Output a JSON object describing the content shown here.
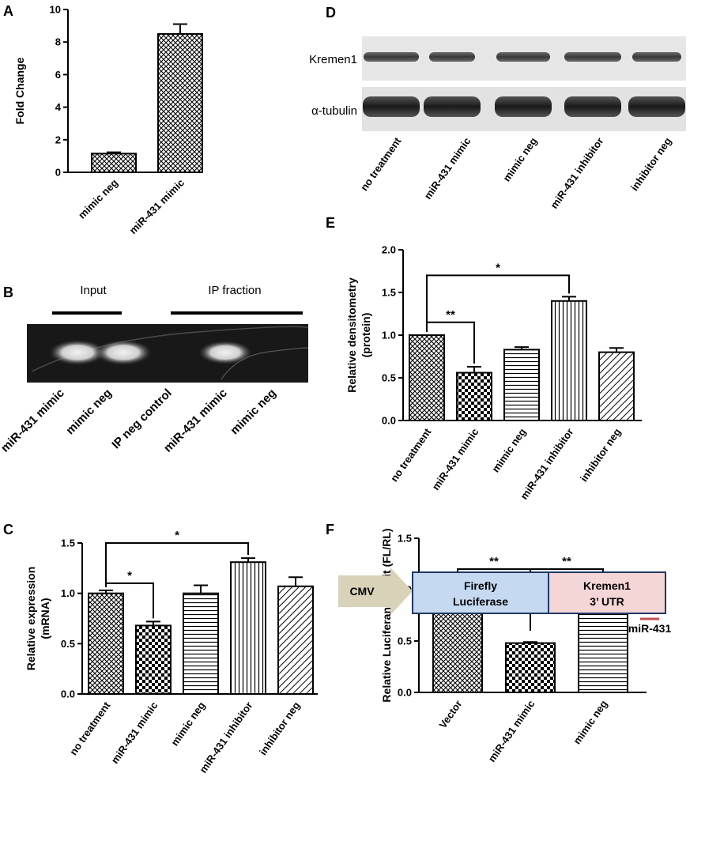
{
  "panels": {
    "A": {
      "letter": "A"
    },
    "B": {
      "letter": "B",
      "group_labels": [
        "Input",
        "IP fraction"
      ],
      "lanes": [
        "miR-431 mimic",
        "mimic neg",
        "IP neg control",
        "miR-431 mimic",
        "mimic neg"
      ]
    },
    "C": {
      "letter": "C"
    },
    "D": {
      "letter": "D",
      "rows": [
        "Kremen1",
        "α-tubulin"
      ],
      "lanes": [
        "no treatment",
        "miR-431 mimic",
        "mimic neg",
        "miR-431 inhibitor",
        "inhibitor neg"
      ]
    },
    "E": {
      "letter": "E"
    },
    "F": {
      "letter": "F"
    }
  },
  "diagram": {
    "promoter": "CMV",
    "box1_line1": "Firefly",
    "box1_line2": "Luciferase",
    "box2_line1": "Kremen1",
    "box2_line2": "3’ UTR",
    "site_label": "miR-431",
    "colors": {
      "promoter": "#d8d2b8",
      "box1": "#c5d9f1",
      "box2": "#f4d6d6",
      "site": "#c0504d",
      "border": "#1f3864"
    }
  },
  "chart_data": [
    {
      "id": "A",
      "type": "bar",
      "categories": [
        "mimic neg",
        "miR-431 mimic"
      ],
      "values": [
        1.15,
        8.5
      ],
      "errors": [
        0.08,
        0.6
      ],
      "patterns": [
        "crosshatch",
        "crosshatch"
      ],
      "ylabel": "Fold Change",
      "ylim": [
        0,
        10
      ],
      "yticks": [
        "0",
        "2",
        "4",
        "6",
        "8",
        "10"
      ],
      "grid": false,
      "significance": []
    },
    {
      "id": "C",
      "type": "bar",
      "categories": [
        "no treatment",
        "miR-431 mimic",
        "mimic neg",
        "miR-431 inhibitor",
        "inhibitor neg"
      ],
      "values": [
        1.0,
        0.68,
        1.0,
        1.31,
        1.07
      ],
      "errors": [
        0.03,
        0.04,
        0.08,
        0.04,
        0.09
      ],
      "patterns": [
        "crosshatch",
        "checker",
        "horizontal",
        "vertical",
        "diagonal"
      ],
      "ylabel": "Relative expression (mRNA)",
      "ylim": [
        0,
        1.5
      ],
      "yticks": [
        "0.0",
        "0.5",
        "1.0",
        "1.5"
      ],
      "grid": false,
      "significance": [
        {
          "from": 0,
          "to": 1,
          "label": "*"
        },
        {
          "from": 0,
          "to": 3,
          "label": "*"
        }
      ]
    },
    {
      "id": "E",
      "type": "bar",
      "categories": [
        "no treatment",
        "miR-431 mimic",
        "mimic neg",
        "miR-431 inhibitor",
        "inhibitor neg"
      ],
      "values": [
        1.0,
        0.56,
        0.83,
        1.4,
        0.8
      ],
      "errors": [
        0.0,
        0.07,
        0.03,
        0.05,
        0.05
      ],
      "patterns": [
        "crosshatch",
        "checker",
        "horizontal",
        "vertical",
        "diagonal"
      ],
      "ylabel": "Relative densitometry (protein)",
      "ylim": [
        0,
        2.0
      ],
      "yticks": [
        "0.0",
        "0.5",
        "1.0",
        "1.5",
        "2.0"
      ],
      "grid": false,
      "significance": [
        {
          "from": 0,
          "to": 1,
          "label": "**"
        },
        {
          "from": 0,
          "to": 3,
          "label": "*"
        }
      ]
    },
    {
      "id": "F",
      "type": "bar",
      "categories": [
        "Vector",
        "miR-431 mimic",
        "mimic neg"
      ],
      "values": [
        1.0,
        0.48,
        0.89
      ],
      "errors": [
        0.03,
        0.01,
        0.03
      ],
      "patterns": [
        "crosshatch",
        "checker",
        "horizontal"
      ],
      "ylabel": "Relative Luciferance Unit (FL/RL)",
      "ylim": [
        0,
        1.5
      ],
      "yticks": [
        "0.0",
        "0.5",
        "1.0",
        "1.5"
      ],
      "grid": false,
      "significance": [
        {
          "from": 0,
          "to": 1,
          "label": "**"
        },
        {
          "from": 1,
          "to": 2,
          "label": "**"
        }
      ]
    }
  ]
}
